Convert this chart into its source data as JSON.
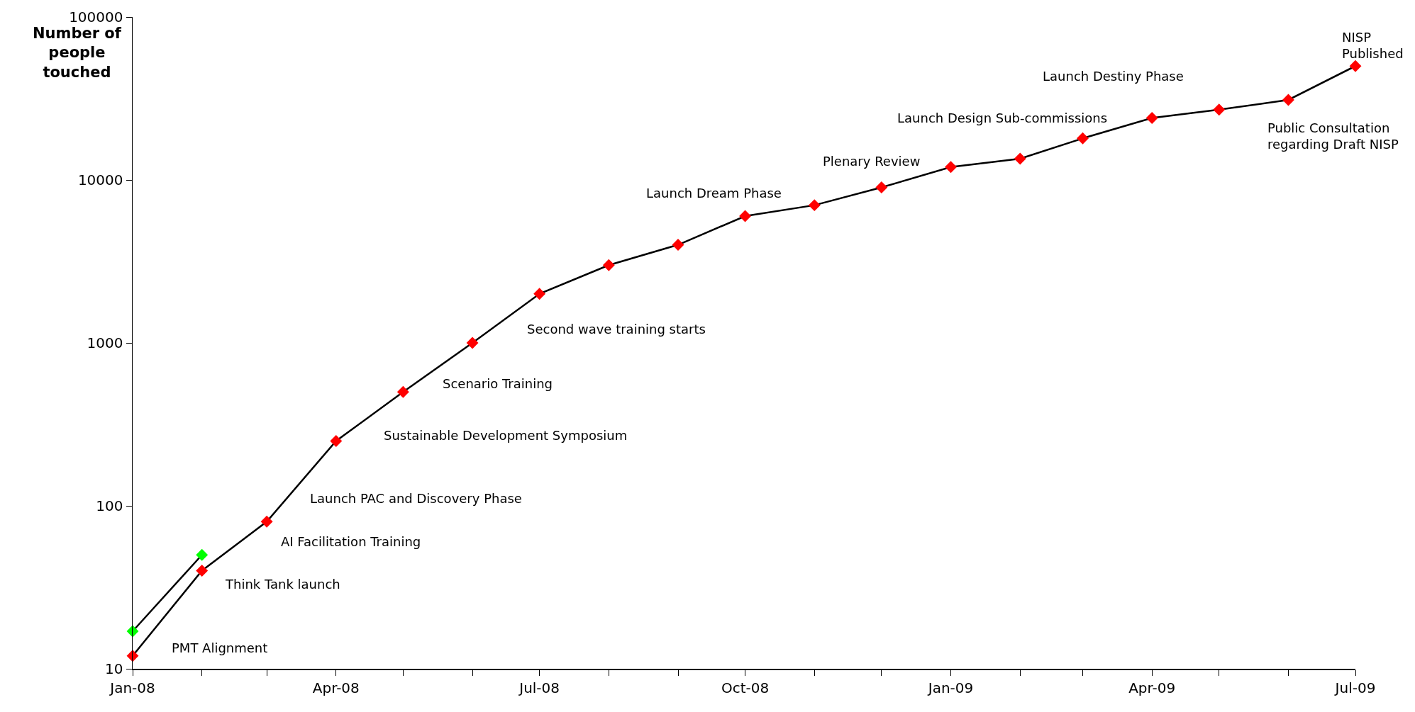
{
  "chart_data": {
    "type": "line",
    "ylabel": "Number of\npeople\ntouched",
    "log": "y",
    "grid": false,
    "marker": "diamond",
    "line_style": "solid",
    "x": [
      "2008-01",
      "2008-02",
      "2008-03",
      "2008-04",
      "2008-05",
      "2008-06",
      "2008-07",
      "2008-08",
      "2008-09",
      "2008-10",
      "2008-11",
      "2008-12",
      "2009-01",
      "2009-02",
      "2009-03",
      "2009-04",
      "2009-05",
      "2009-06",
      "2009-07"
    ],
    "series": [
      {
        "color": "#ff0000",
        "values": [
          12,
          40,
          80,
          250,
          500,
          1000,
          2000,
          3000,
          4000,
          6000,
          7000,
          9000,
          12000,
          13500,
          18000,
          24000,
          27000,
          31000,
          50000
        ]
      },
      {
        "color": "#00ff00",
        "x": [
          "2008-01",
          "2008-02"
        ],
        "values": [
          17,
          50
        ]
      }
    ],
    "xlim": [
      "2008-01",
      "2009-07"
    ],
    "xticks": [
      {
        "value": "2008-01",
        "label": "Jan-08"
      },
      {
        "value": "2008-02",
        "label": null
      },
      {
        "value": "2008-03",
        "label": null
      },
      {
        "value": "2008-04",
        "label": "Apr-08"
      },
      {
        "value": "2008-05",
        "label": null
      },
      {
        "value": "2008-06",
        "label": null
      },
      {
        "value": "2008-07",
        "label": "Jul-08"
      },
      {
        "value": "2008-08",
        "label": null
      },
      {
        "value": "2008-09",
        "label": null
      },
      {
        "value": "2008-10",
        "label": "Oct-08"
      },
      {
        "value": "2008-11",
        "label": null
      },
      {
        "value": "2008-12",
        "label": null
      },
      {
        "value": "2009-01",
        "label": "Jan-09"
      },
      {
        "value": "2009-02",
        "label": null
      },
      {
        "value": "2009-03",
        "label": null
      },
      {
        "value": "2009-04",
        "label": "Apr-09"
      },
      {
        "value": "2009-05",
        "label": null
      },
      {
        "value": "2009-06",
        "label": null
      },
      {
        "value": "2009-07",
        "label": "Jul-09"
      }
    ],
    "ylim": [
      10,
      100000
    ],
    "yticks": [
      10,
      100,
      1000,
      10000,
      100000
    ],
    "annotations": [
      "PMT Alignment",
      "Think Tank launch",
      "AI Facilitation Training",
      "Launch PAC and Discovery Phase",
      "Sustainable Development Symposium",
      "Scenario Training",
      "Second wave training starts",
      "Launch Dream Phase",
      "Plenary Review",
      "Launch Design Sub-commissions",
      "Launch Destiny Phase",
      "Public Consultation\nregarding Draft NISP",
      "NISP\nPublished"
    ]
  }
}
